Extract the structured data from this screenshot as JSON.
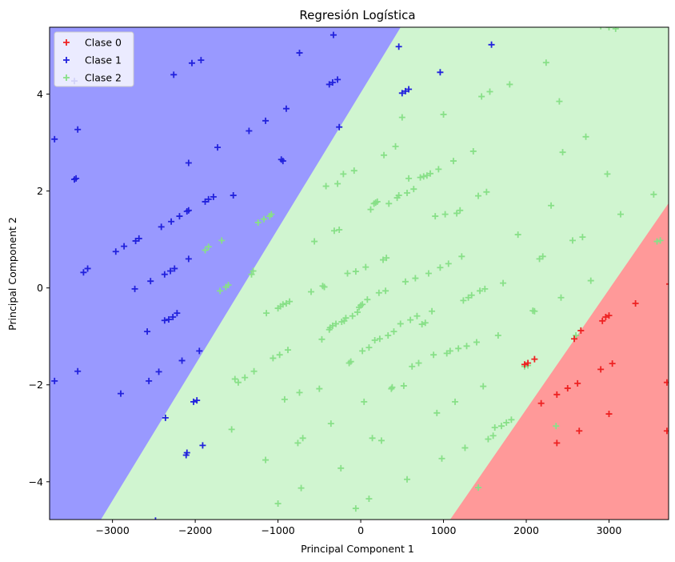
{
  "chart_data": {
    "type": "scatter",
    "title": "Regresión Logística",
    "xlabel": "Principal Component 1",
    "ylabel": "Principal Component 2",
    "xlim": [
      -3760,
      3720
    ],
    "ylim": [
      -4.78,
      5.38
    ],
    "xticks": [
      -3000,
      -2000,
      -1000,
      0,
      1000,
      2000,
      3000
    ],
    "xtick_labels": [
      "−3000",
      "−2000",
      "−1000",
      "0",
      "1000",
      "2000",
      "3000"
    ],
    "yticks": [
      -4,
      -2,
      0,
      2,
      4
    ],
    "ytick_labels": [
      "−4",
      "−2",
      "0",
      "2",
      "4"
    ],
    "grid": false,
    "legend_position": "top-left",
    "decision_regions": [
      {
        "class": "Clase 1",
        "color": "#9999ff",
        "boundary": [
          [
            -3140,
            -4.78
          ],
          [
            482,
            5.38
          ]
        ]
      },
      {
        "class": "Clase 2",
        "color": "#d0f5d0"
      },
      {
        "class": "Clase 0",
        "color": "#ff9999",
        "boundary": [
          [
            1080,
            -4.78
          ],
          [
            3720,
            1.75
          ]
        ]
      }
    ],
    "series": [
      {
        "name": "Clase 0",
        "color": "#ee2222",
        "points": [
          [
            1980,
            -1.58
          ],
          [
            2020,
            -1.55
          ],
          [
            2100,
            -1.47
          ],
          [
            2180,
            -2.38
          ],
          [
            2370,
            -2.2
          ],
          [
            2370,
            -3.2
          ],
          [
            2500,
            -2.07
          ],
          [
            2580,
            -1.05
          ],
          [
            2620,
            -1.97
          ],
          [
            2640,
            -2.95
          ],
          [
            2660,
            -0.88
          ],
          [
            2900,
            -1.68
          ],
          [
            2920,
            -0.68
          ],
          [
            2960,
            -0.6
          ],
          [
            3000,
            -2.6
          ],
          [
            3000,
            -0.57
          ],
          [
            3040,
            -1.56
          ],
          [
            3320,
            -0.32
          ],
          [
            3700,
            -1.95
          ],
          [
            3700,
            -2.95
          ],
          [
            3730,
            0.08
          ]
        ]
      },
      {
        "name": "Clase 1",
        "color": "#2222dd",
        "points": [
          [
            -3700,
            3.07
          ],
          [
            -3460,
            2.24
          ],
          [
            -3440,
            2.26
          ],
          [
            -3420,
            3.27
          ],
          [
            -3350,
            0.32
          ],
          [
            -3300,
            0.4
          ],
          [
            -3460,
            4.27
          ],
          [
            -3700,
            -1.92
          ],
          [
            -3420,
            -1.72
          ],
          [
            -2960,
            0.75
          ],
          [
            -2900,
            -2.18
          ],
          [
            -2860,
            0.86
          ],
          [
            -2730,
            -0.02
          ],
          [
            -2720,
            0.97
          ],
          [
            -2680,
            1.02
          ],
          [
            -2580,
            -0.9
          ],
          [
            -2560,
            -1.92
          ],
          [
            -2540,
            0.14
          ],
          [
            -2440,
            -1.73
          ],
          [
            -2410,
            1.26
          ],
          [
            -2370,
            0.28
          ],
          [
            -2360,
            -2.68
          ],
          [
            -2370,
            -0.67
          ],
          [
            -2320,
            -0.65
          ],
          [
            -2300,
            0.35
          ],
          [
            -2290,
            1.37
          ],
          [
            -2260,
            4.4
          ],
          [
            -2270,
            -0.6
          ],
          [
            -2250,
            0.4
          ],
          [
            -2220,
            -0.52
          ],
          [
            -2190,
            1.48
          ],
          [
            -2160,
            -1.5
          ],
          [
            -2110,
            -3.45
          ],
          [
            -2100,
            -3.4
          ],
          [
            -2100,
            1.58
          ],
          [
            -2080,
            1.6
          ],
          [
            -2080,
            0.6
          ],
          [
            -2080,
            2.58
          ],
          [
            -2020,
            -2.35
          ],
          [
            -1980,
            -2.32
          ],
          [
            -2040,
            4.64
          ],
          [
            -1950,
            -1.3
          ],
          [
            -1930,
            4.7
          ],
          [
            -1910,
            -3.25
          ],
          [
            -1880,
            1.78
          ],
          [
            -1840,
            1.83
          ],
          [
            -1780,
            1.88
          ],
          [
            -1730,
            2.9
          ],
          [
            -1540,
            1.91
          ],
          [
            -1350,
            3.24
          ],
          [
            -1150,
            3.45
          ],
          [
            -960,
            2.65
          ],
          [
            -940,
            2.62
          ],
          [
            -900,
            3.7
          ],
          [
            -740,
            4.85
          ],
          [
            -380,
            4.2
          ],
          [
            -340,
            4.24
          ],
          [
            -280,
            4.3
          ],
          [
            -260,
            3.32
          ],
          [
            -330,
            5.22
          ],
          [
            460,
            4.98
          ],
          [
            500,
            4.02
          ],
          [
            540,
            4.06
          ],
          [
            580,
            4.1
          ],
          [
            960,
            4.45
          ],
          [
            1580,
            5.02
          ],
          [
            -2480,
            -4.8
          ],
          [
            -2160,
            5.45
          ],
          [
            -1580,
            5.45
          ],
          [
            -1340,
            5.45
          ]
        ]
      },
      {
        "name": "Clase 2",
        "color": "#88e088",
        "points": [
          [
            -1880,
            0.78
          ],
          [
            -1840,
            0.85
          ],
          [
            -1680,
            0.98
          ],
          [
            -1700,
            -0.06
          ],
          [
            -1630,
            0.02
          ],
          [
            -1600,
            0.06
          ],
          [
            -1560,
            -2.92
          ],
          [
            -1520,
            -1.88
          ],
          [
            -1480,
            -1.95
          ],
          [
            -1400,
            -1.85
          ],
          [
            -1320,
            0.28
          ],
          [
            -1300,
            0.35
          ],
          [
            -1290,
            -1.72
          ],
          [
            -1240,
            1.35
          ],
          [
            -1170,
            1.42
          ],
          [
            -1150,
            -3.55
          ],
          [
            -1140,
            -0.52
          ],
          [
            -1100,
            1.48
          ],
          [
            -1080,
            1.52
          ],
          [
            -1060,
            -1.45
          ],
          [
            -1000,
            -4.45
          ],
          [
            -1000,
            -0.42
          ],
          [
            -980,
            -1.38
          ],
          [
            -970,
            -0.38
          ],
          [
            -940,
            -0.34
          ],
          [
            -920,
            -2.3
          ],
          [
            -900,
            -0.32
          ],
          [
            -880,
            -1.28
          ],
          [
            -860,
            -0.28
          ],
          [
            -760,
            -3.2
          ],
          [
            -740,
            -2.16
          ],
          [
            -720,
            -4.13
          ],
          [
            -700,
            -3.1
          ],
          [
            -600,
            -0.08
          ],
          [
            -560,
            0.96
          ],
          [
            -500,
            -2.08
          ],
          [
            -470,
            -1.06
          ],
          [
            -460,
            0.04
          ],
          [
            -440,
            0.02
          ],
          [
            -420,
            2.1
          ],
          [
            -380,
            -0.86
          ],
          [
            -370,
            -0.82
          ],
          [
            -360,
            -2.8
          ],
          [
            -340,
            -0.78
          ],
          [
            -320,
            1.18
          ],
          [
            -300,
            -0.74
          ],
          [
            -280,
            2.15
          ],
          [
            -260,
            1.2
          ],
          [
            -240,
            -3.72
          ],
          [
            -230,
            -0.7
          ],
          [
            -210,
            2.35
          ],
          [
            -200,
            -0.68
          ],
          [
            -180,
            -0.62
          ],
          [
            -160,
            0.3
          ],
          [
            -140,
            -1.55
          ],
          [
            -120,
            -1.52
          ],
          [
            -100,
            -0.58
          ],
          [
            -80,
            2.42
          ],
          [
            -60,
            0.34
          ],
          [
            -40,
            -0.5
          ],
          [
            -20,
            -0.4
          ],
          [
            0,
            -0.36
          ],
          [
            20,
            -0.34
          ],
          [
            40,
            -2.35
          ],
          [
            20,
            -1.3
          ],
          [
            60,
            0.43
          ],
          [
            80,
            -0.24
          ],
          [
            100,
            -1.23
          ],
          [
            120,
            1.62
          ],
          [
            140,
            -3.1
          ],
          [
            160,
            1.74
          ],
          [
            170,
            -1.08
          ],
          [
            180,
            1.76
          ],
          [
            200,
            1.78
          ],
          [
            220,
            -0.1
          ],
          [
            230,
            -1.05
          ],
          [
            250,
            -3.15
          ],
          [
            270,
            0.58
          ],
          [
            280,
            2.74
          ],
          [
            300,
            -0.06
          ],
          [
            310,
            0.62
          ],
          [
            330,
            -0.98
          ],
          [
            340,
            1.74
          ],
          [
            370,
            -2.08
          ],
          [
            380,
            -2.05
          ],
          [
            400,
            -0.9
          ],
          [
            420,
            2.92
          ],
          [
            440,
            1.86
          ],
          [
            460,
            1.91
          ],
          [
            480,
            -0.74
          ],
          [
            500,
            3.52
          ],
          [
            520,
            -2.02
          ],
          [
            540,
            0.13
          ],
          [
            560,
            1.96
          ],
          [
            580,
            2.26
          ],
          [
            600,
            -0.66
          ],
          [
            620,
            -1.62
          ],
          [
            640,
            2.04
          ],
          [
            660,
            0.2
          ],
          [
            680,
            -0.58
          ],
          [
            700,
            -1.55
          ],
          [
            720,
            2.28
          ],
          [
            740,
            -0.75
          ],
          [
            760,
            2.3
          ],
          [
            780,
            -0.72
          ],
          [
            800,
            2.32
          ],
          [
            820,
            0.3
          ],
          [
            840,
            2.36
          ],
          [
            860,
            -0.48
          ],
          [
            880,
            -1.38
          ],
          [
            900,
            1.48
          ],
          [
            920,
            -2.58
          ],
          [
            940,
            2.45
          ],
          [
            960,
            0.42
          ],
          [
            980,
            -3.52
          ],
          [
            1000,
            3.58
          ],
          [
            1020,
            1.52
          ],
          [
            1040,
            -1.35
          ],
          [
            1060,
            0.5
          ],
          [
            1080,
            -1.3
          ],
          [
            1120,
            2.62
          ],
          [
            1140,
            -2.35
          ],
          [
            1160,
            1.54
          ],
          [
            1180,
            -1.25
          ],
          [
            1200,
            1.6
          ],
          [
            1220,
            0.65
          ],
          [
            1240,
            -0.26
          ],
          [
            1260,
            -3.3
          ],
          [
            1280,
            -1.2
          ],
          [
            1300,
            -0.2
          ],
          [
            1340,
            -0.15
          ],
          [
            1360,
            2.82
          ],
          [
            1400,
            -1.12
          ],
          [
            1420,
            1.9
          ],
          [
            1440,
            -0.06
          ],
          [
            1460,
            3.95
          ],
          [
            1480,
            -2.03
          ],
          [
            1500,
            -0.02
          ],
          [
            1520,
            1.98
          ],
          [
            1540,
            -3.12
          ],
          [
            1560,
            4.05
          ],
          [
            1600,
            -3.05
          ],
          [
            1620,
            -2.88
          ],
          [
            1660,
            -0.98
          ],
          [
            1700,
            -2.85
          ],
          [
            1720,
            0.1
          ],
          [
            1760,
            -2.78
          ],
          [
            1800,
            4.2
          ],
          [
            1820,
            -2.72
          ],
          [
            1900,
            1.1
          ],
          [
            1980,
            -1.62
          ],
          [
            2020,
            -1.6
          ],
          [
            2080,
            -0.47
          ],
          [
            2100,
            -0.48
          ],
          [
            2160,
            0.6
          ],
          [
            2200,
            0.65
          ],
          [
            2240,
            4.65
          ],
          [
            2300,
            1.7
          ],
          [
            2360,
            -2.85
          ],
          [
            2400,
            3.85
          ],
          [
            2420,
            -0.2
          ],
          [
            2440,
            2.8
          ],
          [
            2560,
            0.98
          ],
          [
            2600,
            -0.98
          ],
          [
            2680,
            1.05
          ],
          [
            2720,
            3.12
          ],
          [
            2780,
            0.15
          ],
          [
            2980,
            2.35
          ],
          [
            3140,
            1.52
          ],
          [
            3540,
            1.93
          ],
          [
            3580,
            0.96
          ],
          [
            3620,
            0.98
          ],
          [
            -60,
            -4.55
          ],
          [
            100,
            -4.35
          ],
          [
            560,
            -3.95
          ],
          [
            1420,
            -4.12
          ],
          [
            2900,
            5.4
          ],
          [
            3000,
            5.38
          ],
          [
            3080,
            5.35
          ]
        ]
      }
    ]
  }
}
